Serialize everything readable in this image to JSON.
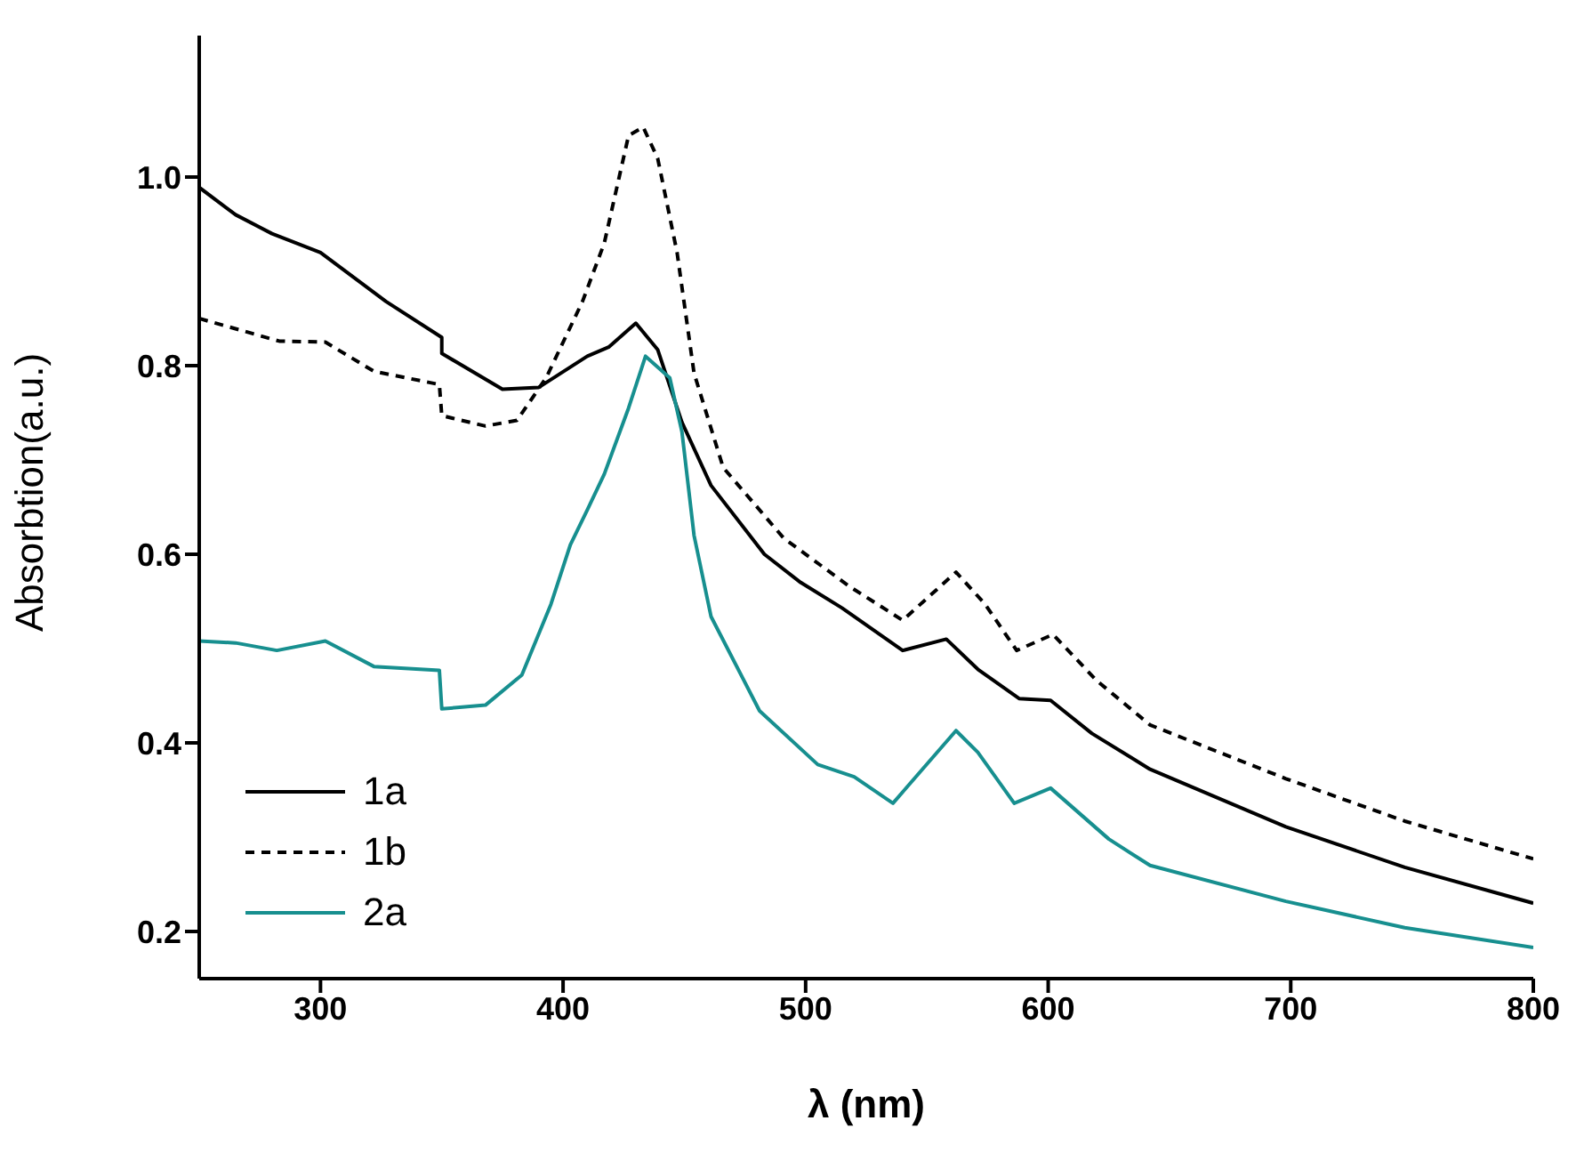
{
  "chart_data": {
    "type": "line",
    "xlabel": "λ (nm)",
    "ylabel": "Absorbtion(a.u.)",
    "xlim": [
      250,
      800
    ],
    "xticks": [
      300,
      400,
      500,
      600,
      700,
      800
    ],
    "ylim": [
      0.15,
      1.15
    ],
    "yticks": [
      0.2,
      0.4,
      0.6,
      0.8,
      {
        "value": 1,
        "label": "1.0"
      }
    ],
    "grid": false,
    "legend": "bottom left",
    "marker": "none",
    "series": [
      {
        "name": "1a",
        "color": "#000000",
        "line_style": "solid",
        "x": [
          250,
          265,
          280,
          300,
          327,
          350,
          350,
          375,
          390,
          410,
          419,
          430,
          439,
          449,
          461,
          483,
          498,
          515,
          540,
          558,
          571,
          588,
          601,
          618,
          642,
          698,
          747,
          800
        ],
        "values": [
          0.989,
          0.96,
          0.94,
          0.92,
          0.868,
          0.83,
          0.813,
          0.775,
          0.777,
          0.81,
          0.82,
          0.845,
          0.817,
          0.74,
          0.673,
          0.6,
          0.57,
          0.543,
          0.498,
          0.51,
          0.478,
          0.447,
          0.445,
          0.41,
          0.372,
          0.311,
          0.268,
          0.23
        ]
      },
      {
        "name": "1b",
        "color": "#000000",
        "line_style": "dashed",
        "x": [
          250,
          283,
          302,
          322,
          349,
          350,
          368,
          381,
          393,
          408,
          417,
          427,
          433,
          439,
          447,
          454,
          466,
          491,
          518,
          540,
          562,
          574,
          587,
          602,
          620,
          642,
          698,
          747,
          800
        ],
        "values": [
          0.85,
          0.826,
          0.825,
          0.794,
          0.78,
          0.747,
          0.736,
          0.742,
          0.787,
          0.868,
          0.93,
          1.044,
          1.053,
          1.02,
          0.92,
          0.792,
          0.692,
          0.617,
          0.566,
          0.53,
          0.581,
          0.547,
          0.498,
          0.515,
          0.466,
          0.419,
          0.362,
          0.317,
          0.277
        ]
      },
      {
        "name": "2a",
        "color": "#178f8f",
        "line_style": "solid",
        "x": [
          250,
          265,
          282,
          302,
          322,
          349,
          350,
          368,
          383,
          395,
          403,
          410,
          417,
          427,
          434,
          444,
          449,
          454,
          461,
          481,
          505,
          520,
          536,
          562,
          571,
          586,
          601,
          625,
          642,
          698,
          747,
          800
        ],
        "values": [
          0.508,
          0.506,
          0.498,
          0.508,
          0.481,
          0.477,
          0.436,
          0.44,
          0.472,
          0.547,
          0.61,
          0.647,
          0.685,
          0.755,
          0.81,
          0.787,
          0.73,
          0.62,
          0.534,
          0.434,
          0.377,
          0.364,
          0.336,
          0.413,
          0.39,
          0.336,
          0.352,
          0.298,
          0.27,
          0.232,
          0.204,
          0.183
        ]
      }
    ]
  }
}
